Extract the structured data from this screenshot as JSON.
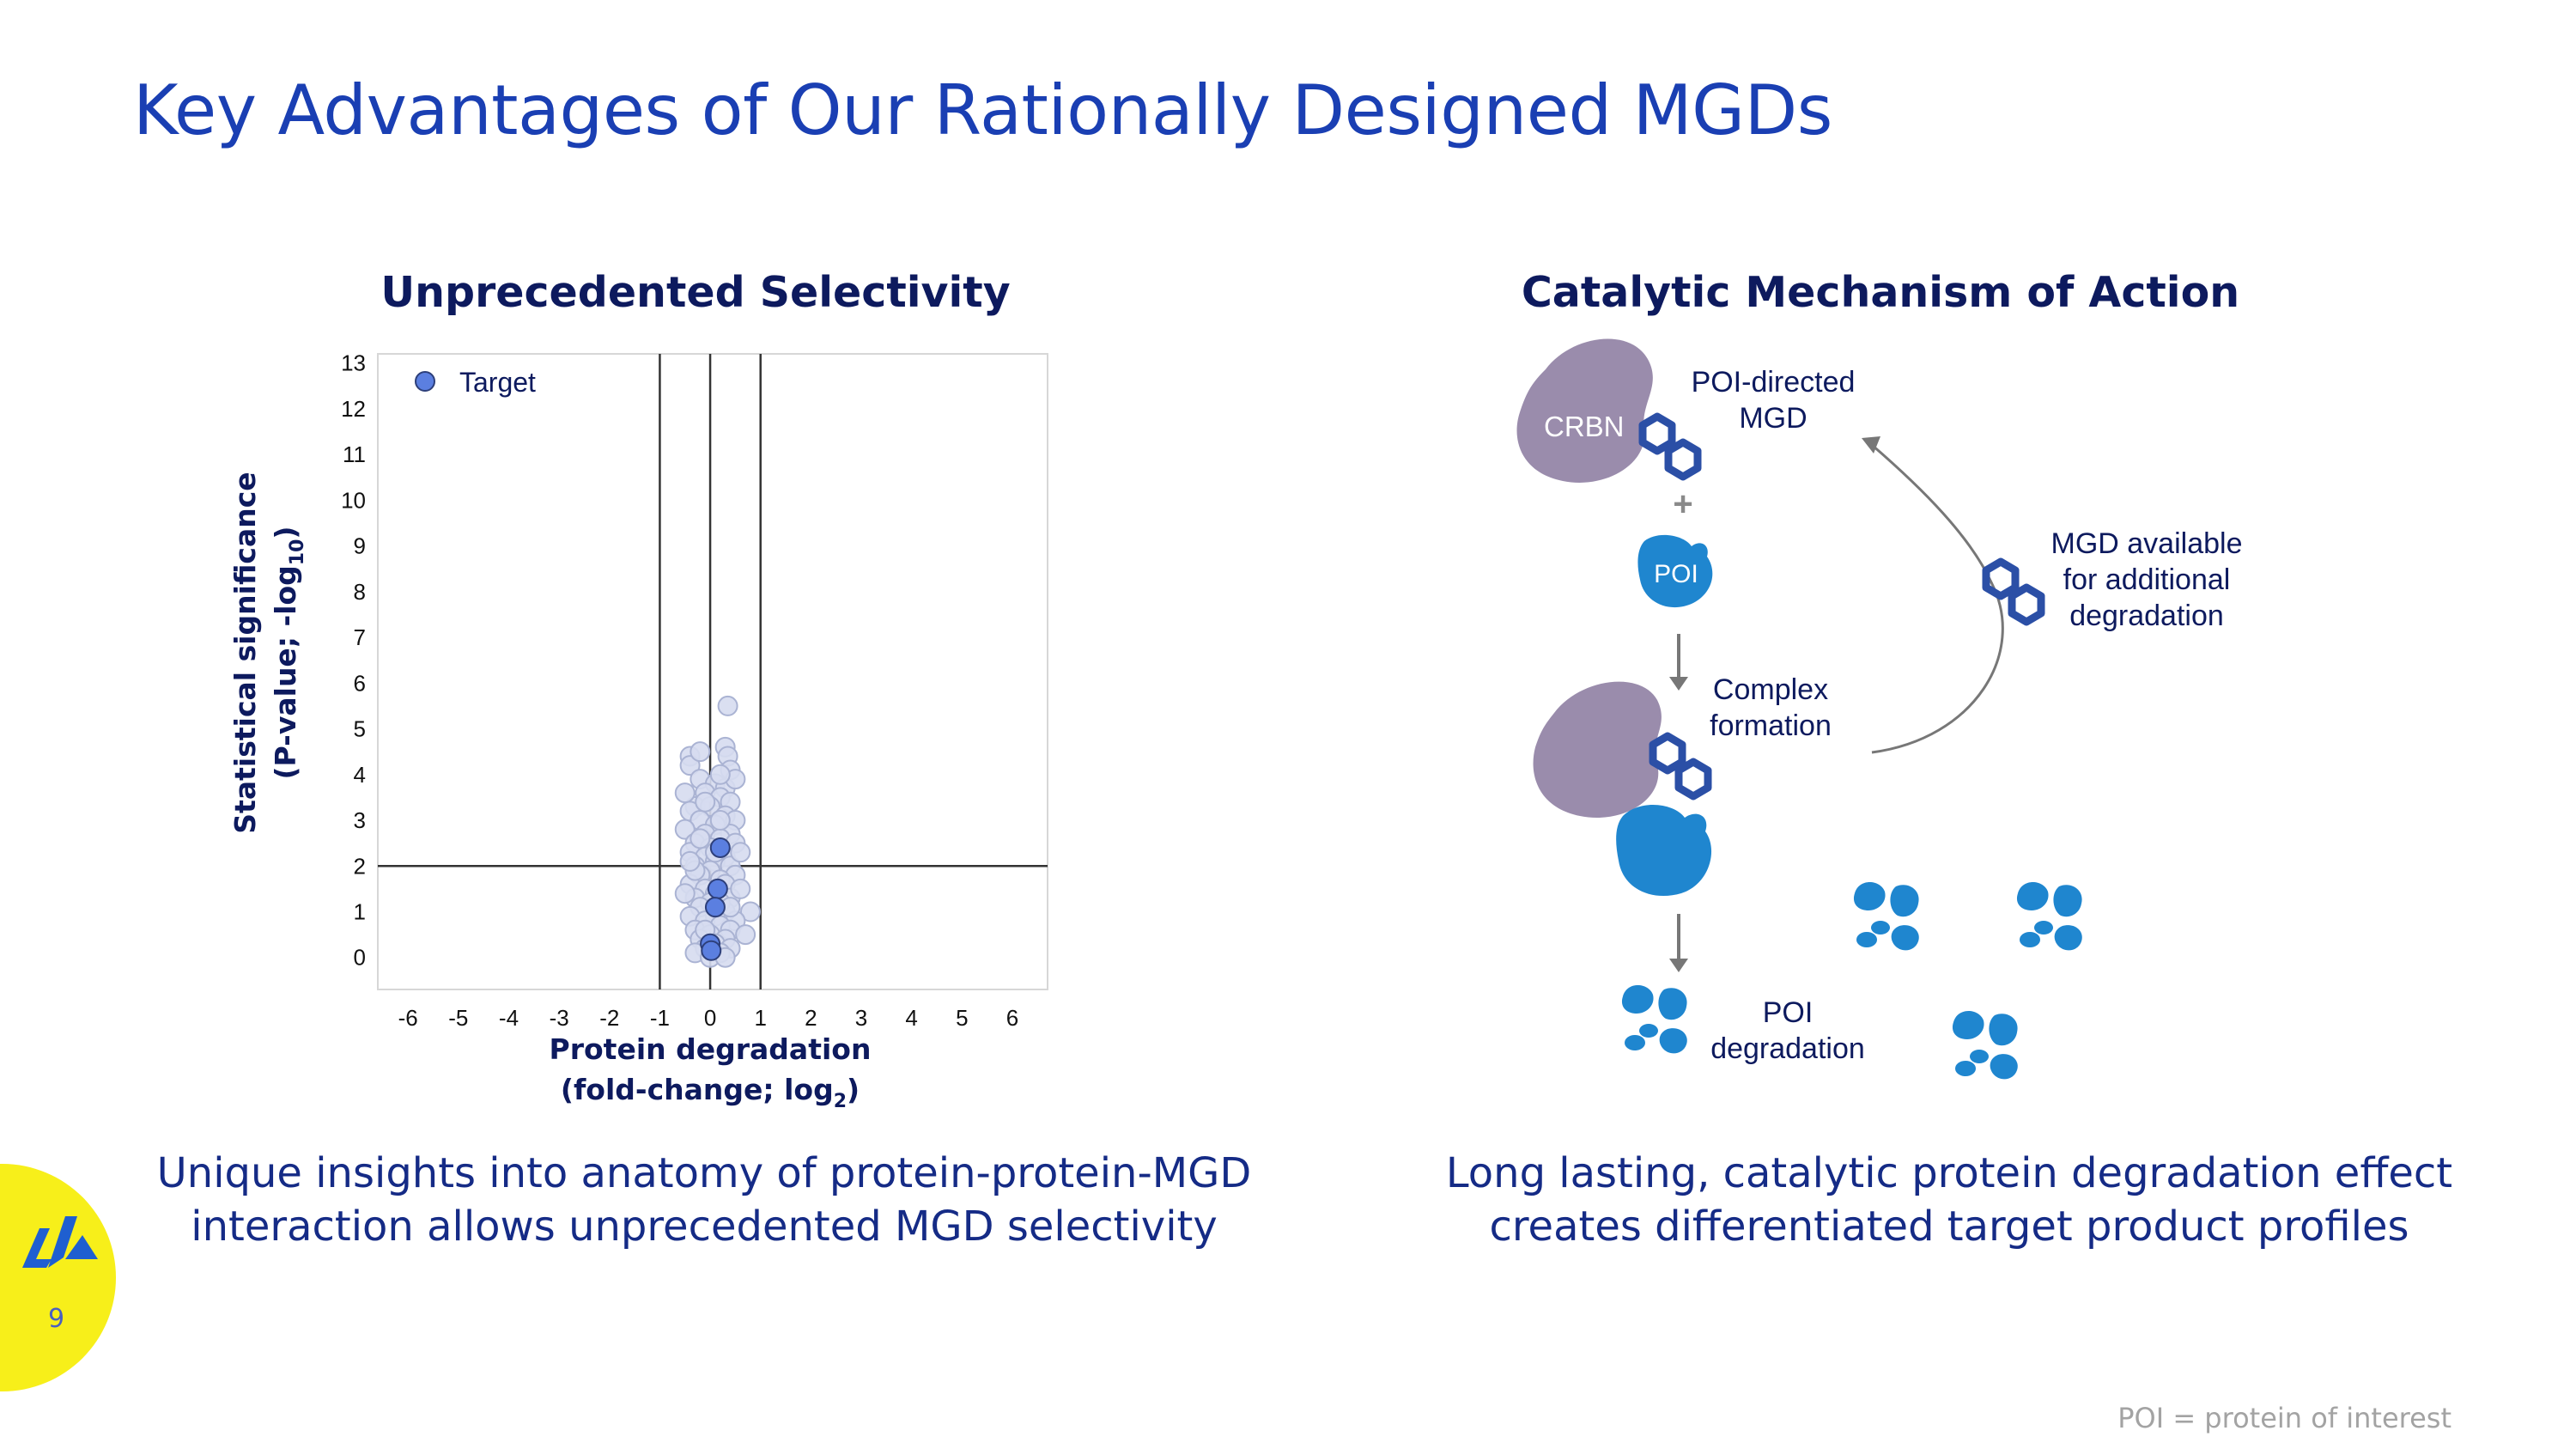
{
  "slide": {
    "title": "Key Advantages of Our Rationally Designed MGDs",
    "page_number": "9",
    "footnote": "POI = protein of interest",
    "accent_color": "#1a3fb3",
    "logo_color": "#f7ef1a"
  },
  "left": {
    "title": "Unprecedented Selectivity",
    "caption_line1": "Unique insights into anatomy of protein-protein-MGD",
    "caption_line2": "interaction allows unprecedented MGD selectivity"
  },
  "right": {
    "title": "Catalytic Mechanism of Action",
    "caption_line1": "Long lasting, catalytic protein degradation effect",
    "caption_line2": "creates differentiated target product profiles"
  },
  "chart_data": {
    "type": "scatter",
    "xlabel_line1": "Protein degradation",
    "xlabel_line2_prefix": "(fold-change; log",
    "xlabel_line2_sub": "2",
    "xlabel_line2_suffix": ")",
    "ylabel_line1": "Statistical significance",
    "ylabel_line2_prefix": "(P-value; -log",
    "ylabel_line2_sub": "10",
    "ylabel_line2_suffix": ")",
    "xlim": [
      -6.6,
      6.7
    ],
    "ylim": [
      -0.7,
      13.2
    ],
    "x_ticks": [
      "-6",
      "-5",
      "-4",
      "-3",
      "-2",
      "-1",
      "0",
      "1",
      "2",
      "3",
      "4",
      "5",
      "6"
    ],
    "y_ticks": [
      "0",
      "1",
      "2",
      "3",
      "4",
      "5",
      "6",
      "7",
      "8",
      "9",
      "10",
      "11",
      "12",
      "13"
    ],
    "threshold_lines": {
      "x": [
        -1,
        0,
        1
      ],
      "y": [
        2
      ]
    },
    "legend": {
      "label": "Target",
      "placement": "top-left"
    },
    "series": [
      {
        "name": "Target",
        "color": "#5b7fe0",
        "points": [
          [
            0.2,
            2.4
          ],
          [
            0.15,
            1.5
          ],
          [
            0.1,
            1.1
          ],
          [
            0.0,
            0.3
          ],
          [
            0.02,
            0.15
          ]
        ]
      },
      {
        "color": "#d6dcef",
        "points": [
          [
            0.35,
            5.5
          ],
          [
            0.3,
            4.6
          ],
          [
            0.35,
            4.4
          ],
          [
            0.4,
            4.1
          ],
          [
            -0.4,
            4.4
          ],
          [
            -0.4,
            4.2
          ],
          [
            -0.2,
            3.9
          ],
          [
            0.1,
            3.8
          ],
          [
            0.3,
            3.7
          ],
          [
            -0.1,
            3.6
          ],
          [
            0.2,
            3.5
          ],
          [
            0.4,
            3.4
          ],
          [
            -0.3,
            3.3
          ],
          [
            0.0,
            3.3
          ],
          [
            -0.4,
            3.2
          ],
          [
            0.3,
            3.1
          ],
          [
            0.5,
            3.0
          ],
          [
            -0.2,
            3.0
          ],
          [
            0.1,
            2.9
          ],
          [
            -0.5,
            2.8
          ],
          [
            0.4,
            2.7
          ],
          [
            -0.1,
            2.7
          ],
          [
            0.2,
            2.6
          ],
          [
            -0.3,
            2.5
          ],
          [
            0.5,
            2.5
          ],
          [
            0.0,
            2.4
          ],
          [
            -0.4,
            2.3
          ],
          [
            0.3,
            2.2
          ],
          [
            -0.1,
            2.2
          ],
          [
            0.1,
            2.1
          ],
          [
            -0.3,
            2.0
          ],
          [
            0.4,
            2.0
          ],
          [
            0.0,
            1.9
          ],
          [
            -0.2,
            1.8
          ],
          [
            0.5,
            1.8
          ],
          [
            0.2,
            1.7
          ],
          [
            -0.4,
            1.6
          ],
          [
            0.3,
            1.6
          ],
          [
            -0.1,
            1.5
          ],
          [
            0.1,
            1.4
          ],
          [
            -0.3,
            1.3
          ],
          [
            0.4,
            1.3
          ],
          [
            0.0,
            1.2
          ],
          [
            -0.2,
            1.1
          ],
          [
            0.3,
            1.0
          ],
          [
            0.8,
            1.0
          ],
          [
            -0.4,
            0.9
          ],
          [
            0.1,
            0.9
          ],
          [
            0.5,
            0.8
          ],
          [
            -0.1,
            0.8
          ],
          [
            0.2,
            0.7
          ],
          [
            -0.3,
            0.6
          ],
          [
            0.4,
            0.6
          ],
          [
            0.0,
            0.5
          ],
          [
            0.7,
            0.5
          ],
          [
            -0.2,
            0.4
          ],
          [
            0.3,
            0.4
          ],
          [
            0.1,
            0.3
          ],
          [
            -0.1,
            0.2
          ],
          [
            0.4,
            0.2
          ],
          [
            0.2,
            0.1
          ],
          [
            -0.3,
            0.1
          ],
          [
            0.0,
            0.0
          ],
          [
            0.3,
            0.0
          ],
          [
            -0.1,
            3.4
          ],
          [
            0.2,
            3.0
          ],
          [
            -0.2,
            2.6
          ],
          [
            0.1,
            2.3
          ],
          [
            -0.3,
            1.9
          ],
          [
            0.2,
            1.2
          ],
          [
            -0.5,
            3.6
          ],
          [
            0.5,
            3.9
          ],
          [
            -0.2,
            4.5
          ],
          [
            0.2,
            4.0
          ],
          [
            -0.4,
            2.1
          ],
          [
            0.6,
            2.3
          ],
          [
            -0.5,
            1.4
          ],
          [
            0.6,
            1.5
          ],
          [
            -0.1,
            0.6
          ],
          [
            0.4,
            1.1
          ]
        ]
      }
    ]
  },
  "diagram": {
    "crbn_label": "CRBN",
    "poi_label": "POI",
    "mgd_label_line1": "POI-directed",
    "mgd_label_line2": "MGD",
    "plus": "+",
    "complex_line1": "Complex",
    "complex_line2": "formation",
    "available_line1": "MGD available",
    "available_line2": "for additional",
    "available_line3": "degradation",
    "degradation_line1": "POI",
    "degradation_line2": "degradation",
    "crbn_color": "#9a8cac",
    "poi_color": "#1f86cf",
    "mgd_color": "#2b4fa6"
  }
}
